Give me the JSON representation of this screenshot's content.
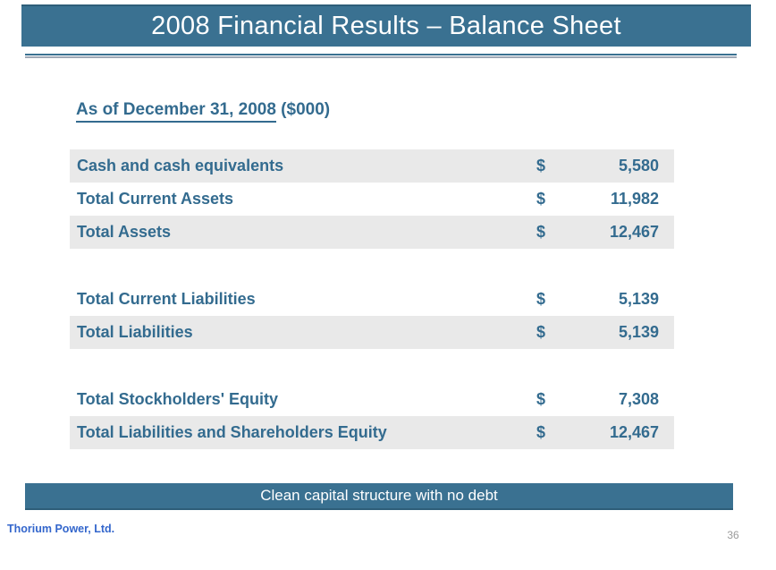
{
  "slide": {
    "title": "2008 Financial Results – Balance Sheet",
    "heading": {
      "underlined": "As of December 31, 2008",
      "suffix": " ($000)"
    },
    "banner_text": "Clean capital structure with no debt",
    "footer_company": "Thorium Power, Ltd.",
    "page_number": "36"
  },
  "table": {
    "rows": [
      {
        "label": "Cash and cash equivalents",
        "currency": "$",
        "value": "5,580"
      },
      {
        "label": "Total Current Assets",
        "currency": "$",
        "value": "11,982"
      },
      {
        "label": "Total Assets",
        "currency": "$",
        "value": "12,467"
      },
      {
        "label": "Total Current Liabilities",
        "currency": "$",
        "value": "5,139"
      },
      {
        "label": "Total Liabilities",
        "currency": "$",
        "value": "5,139"
      },
      {
        "label": "Total Stockholders' Equity",
        "currency": "$",
        "value": "7,308"
      },
      {
        "label": "Total Liabilities and Shareholders Equity",
        "currency": "$",
        "value": "12,467"
      }
    ]
  },
  "colors": {
    "title_bar": "#3A7191",
    "row_stripe": "#E9E9E9",
    "table_text": "#336B8F",
    "footer_blue": "#3366CC",
    "page_number_gray": "#9A9A9A"
  }
}
